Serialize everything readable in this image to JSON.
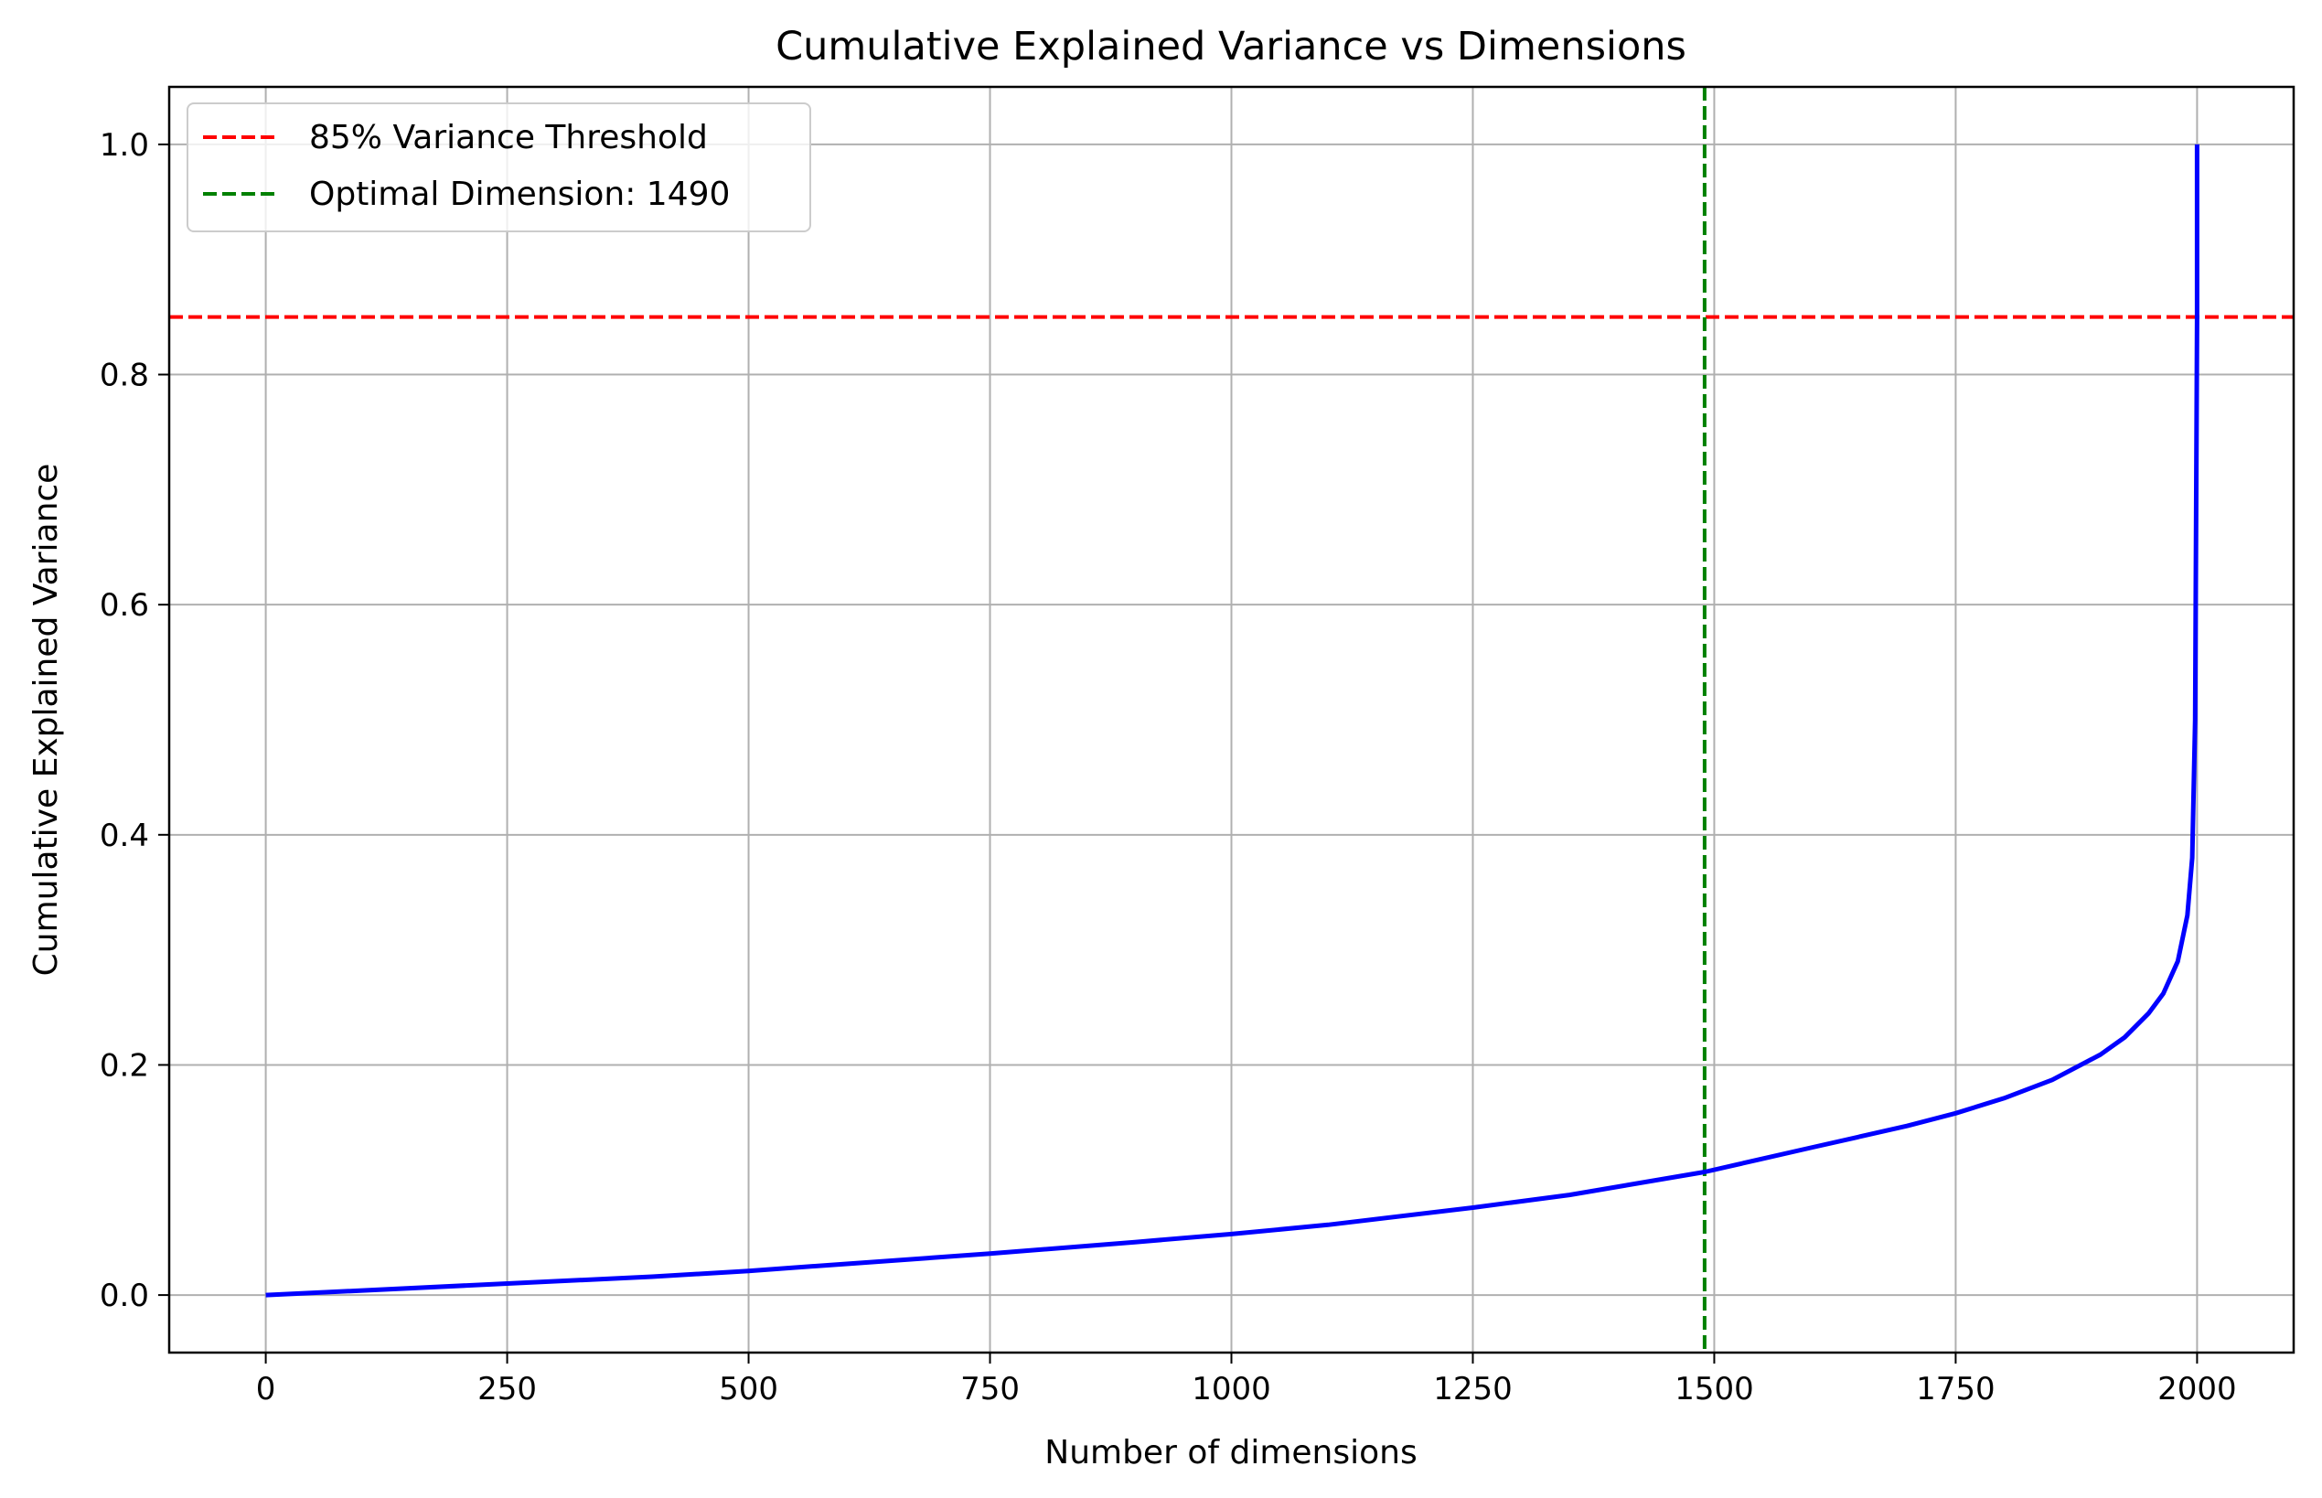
{
  "chart_data": {
    "type": "line",
    "title": "Cumulative Explained Variance vs Dimensions",
    "xlabel": "Number of dimensions",
    "ylabel": "Cumulative Explained Variance",
    "xlim": [
      -100,
      2100
    ],
    "ylim": [
      -0.05,
      1.05
    ],
    "xticks": [
      0,
      250,
      500,
      750,
      1000,
      1250,
      1500,
      1750,
      2000
    ],
    "yticks": [
      0.0,
      0.2,
      0.4,
      0.6,
      0.8,
      1.0
    ],
    "xtick_labels": [
      "0",
      "250",
      "500",
      "750",
      "1000",
      "1250",
      "1500",
      "1750",
      "2000"
    ],
    "ytick_labels": [
      "0.0",
      "0.2",
      "0.4",
      "0.6",
      "0.8",
      "1.0"
    ],
    "grid": true,
    "legend_position": "top-left",
    "series": [
      {
        "color": "#0000ff",
        "x": [
          0,
          100,
          250,
          400,
          500,
          600,
          750,
          900,
          1000,
          1100,
          1250,
          1350,
          1490,
          1600,
          1700,
          1750,
          1800,
          1850,
          1900,
          1925,
          1950,
          1965,
          1980,
          1990,
          1995,
          1998,
          2000,
          2000
        ],
        "y": [
          0.0,
          0.004,
          0.01,
          0.016,
          0.021,
          0.027,
          0.036,
          0.046,
          0.053,
          0.061,
          0.076,
          0.087,
          0.107,
          0.128,
          0.147,
          0.158,
          0.171,
          0.187,
          0.209,
          0.224,
          0.245,
          0.262,
          0.29,
          0.33,
          0.38,
          0.5,
          0.85,
          1.0
        ]
      }
    ],
    "reference_lines": [
      {
        "orientation": "horizontal",
        "value": 0.85,
        "color": "#ff0000",
        "style": "dashed",
        "label": "85% Variance Threshold"
      },
      {
        "orientation": "vertical",
        "value": 1490,
        "color": "#008000",
        "style": "dashed",
        "label": "Optimal Dimension: 1490"
      }
    ]
  }
}
